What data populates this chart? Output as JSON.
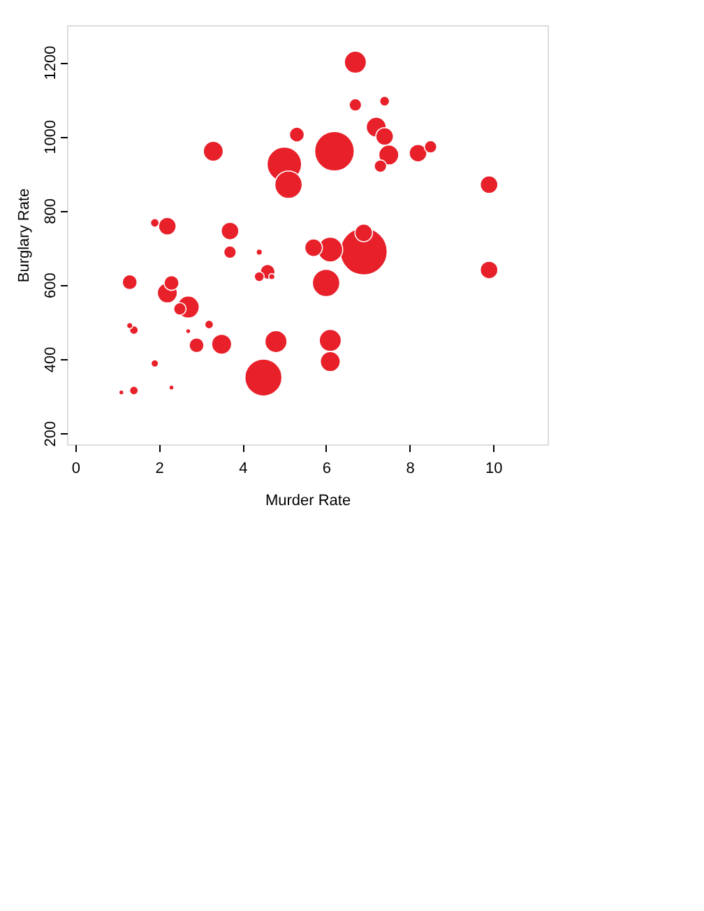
{
  "chart_data": {
    "type": "bubble",
    "xlabel": "Murder Rate",
    "ylabel": "Burglary Rate",
    "xlim": [
      -0.2,
      11.3
    ],
    "ylim": [
      170,
      1300
    ],
    "xticks": [
      0,
      2,
      4,
      6,
      8,
      10
    ],
    "yticks": [
      200,
      400,
      600,
      800,
      1000,
      1200
    ],
    "grid": false,
    "legend": false,
    "series": [
      {
        "color": "#e8202a",
        "x": [
          1.1,
          1.4,
          2.3,
          1.9,
          4.5,
          1.3,
          1.4,
          2.9,
          3.5,
          3.2,
          2.7,
          4.8,
          6.1,
          6.1,
          2.2,
          2.3,
          2.5,
          2.7,
          1.3,
          1.9,
          2.2,
          3.7,
          3.7,
          3.3,
          4.4,
          4.6,
          4.4,
          4.7,
          5.0,
          5.1,
          5.3,
          5.7,
          6.0,
          6.1,
          6.9,
          6.9,
          6.2,
          6.7,
          6.7,
          7.4,
          7.2,
          7.4,
          7.5,
          7.3,
          8.2,
          8.5,
          9.9,
          9.9
        ],
        "values": [
          310,
          315,
          323,
          388,
          350,
          490,
          478,
          437,
          440,
          493,
          475,
          447,
          450,
          393,
          578,
          605,
          535,
          540,
          607,
          767,
          758,
          745,
          688,
          960,
          688,
          635,
          622,
          622,
          925,
          870,
          1005,
          700,
          605,
          695,
          690,
          740,
          960,
          1200,
          1085,
          1095,
          1025,
          1000,
          950,
          920,
          955,
          972,
          870,
          640
        ],
        "sizes": [
          0.011,
          0.034,
          0.011,
          0.025,
          0.62,
          0.017,
          0.034,
          0.1,
          0.18,
          0.034,
          0.011,
          0.22,
          0.22,
          0.18,
          0.18,
          0.1,
          0.07,
          0.22,
          0.1,
          0.034,
          0.14,
          0.14,
          0.07,
          0.18,
          0.017,
          0.1,
          0.044,
          0.017,
          0.54,
          0.34,
          0.1,
          0.14,
          0.34,
          0.28,
          1,
          0.14,
          0.71,
          0.22,
          0.07,
          0.044,
          0.18,
          0.14,
          0.18,
          0.07,
          0.14,
          0.07,
          0.14,
          0.14
        ]
      }
    ]
  }
}
